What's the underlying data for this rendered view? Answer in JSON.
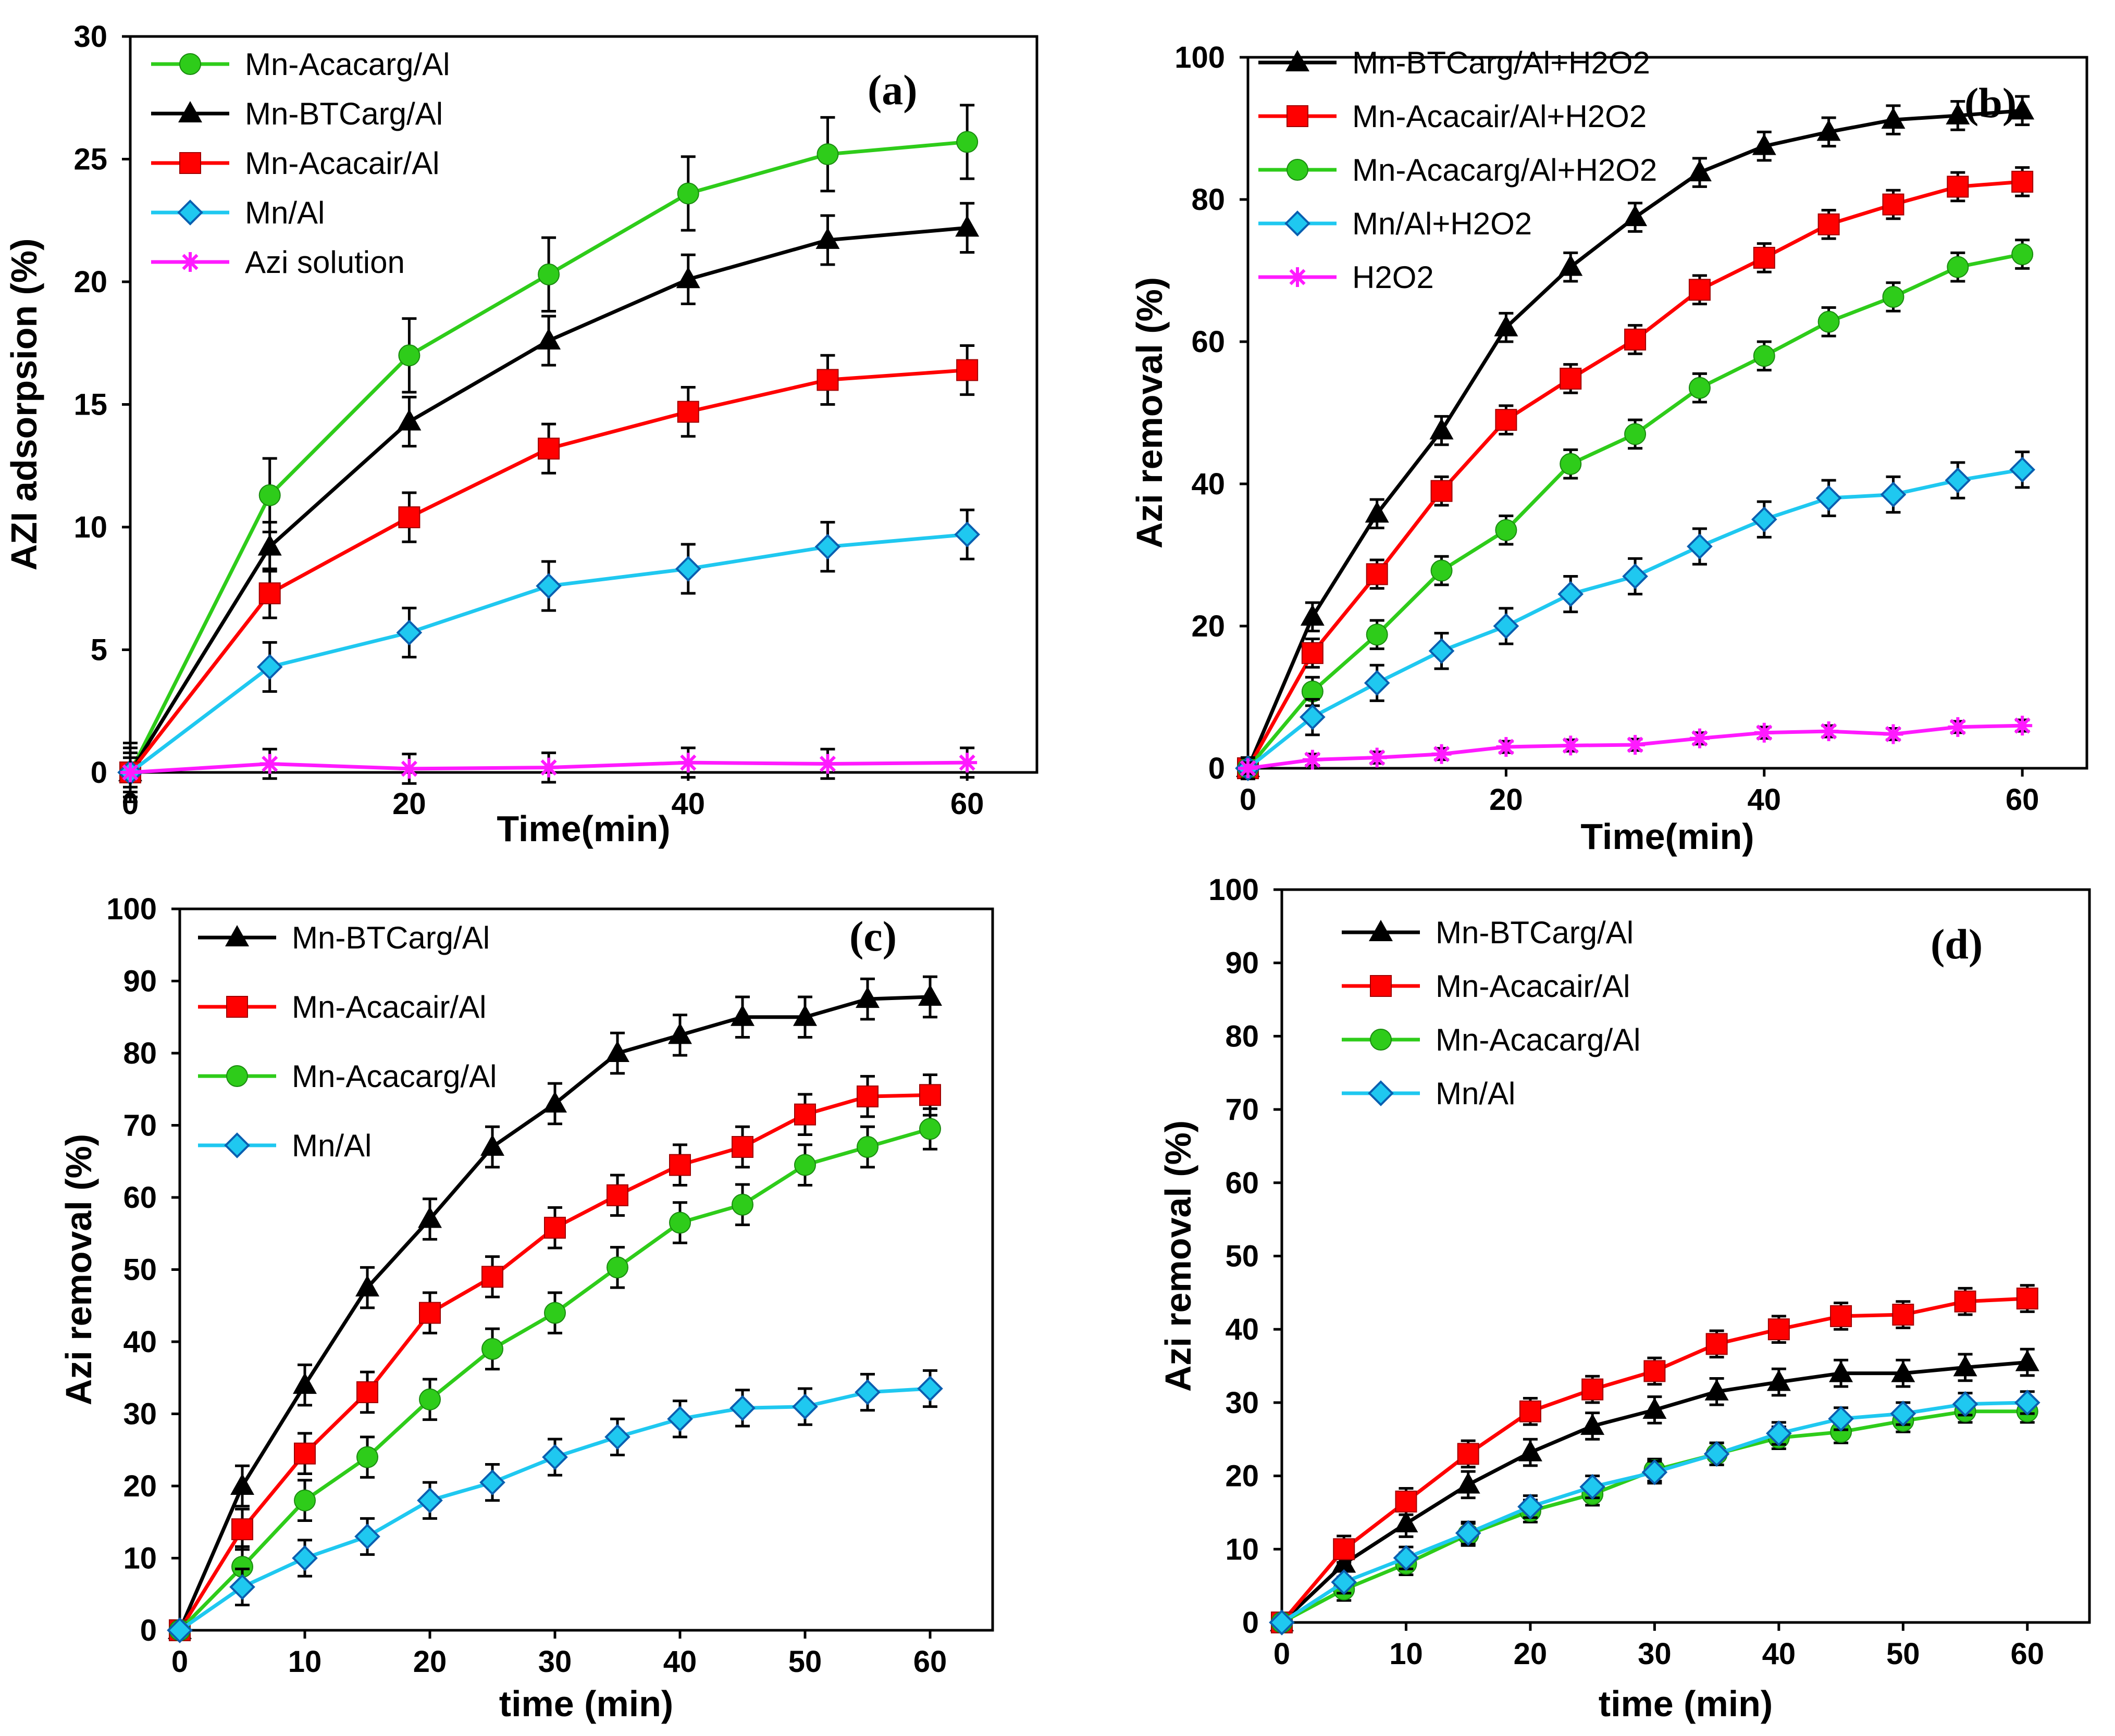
{
  "colors": {
    "green": "#2ecc1a",
    "black": "#000000",
    "red": "#ff0000",
    "cyan": "#1fc8f0",
    "magenta": "#ff1aff"
  },
  "chart_data": [
    {
      "type": "line",
      "panel": "(a)",
      "xlabel": "Time(min)",
      "ylabel": "AZI adsorpsion (%)",
      "xlim": [
        0,
        65
      ],
      "ylim": [
        0,
        30
      ],
      "xticks": [
        0,
        20,
        40,
        60
      ],
      "yticks": [
        0,
        5,
        10,
        15,
        20,
        25,
        30
      ],
      "legend_position": "top-left",
      "series": [
        {
          "name": "Mn-Acacarg/Al",
          "color": "#2ecc1a",
          "marker": "circle",
          "x": [
            0,
            10,
            20,
            30,
            40,
            50,
            60
          ],
          "values": [
            0,
            11.3,
            17.0,
            20.3,
            23.6,
            25.2,
            25.7
          ],
          "err": [
            1.2,
            1.5,
            1.5,
            1.5,
            1.5,
            1.5,
            1.5
          ]
        },
        {
          "name": "Mn-BTCarg/Al",
          "color": "#000000",
          "marker": "triangle",
          "x": [
            0,
            10,
            20,
            30,
            40,
            50,
            60
          ],
          "values": [
            0,
            9.2,
            14.3,
            17.6,
            20.1,
            21.7,
            22.2
          ],
          "err": [
            1.2,
            1.0,
            1.0,
            1.0,
            1.0,
            1.0,
            1.0
          ]
        },
        {
          "name": "Mn-Acacair/Al",
          "color": "#ff0000",
          "marker": "square",
          "x": [
            0,
            10,
            20,
            30,
            40,
            50,
            60
          ],
          "values": [
            0,
            7.3,
            10.4,
            13.2,
            14.7,
            16.0,
            16.4
          ],
          "err": [
            1.0,
            1.0,
            1.0,
            1.0,
            1.0,
            1.0,
            1.0
          ]
        },
        {
          "name": "Mn/Al",
          "color": "#1fc8f0",
          "marker": "diamond",
          "x": [
            0,
            10,
            20,
            30,
            40,
            50,
            60
          ],
          "values": [
            0,
            4.3,
            5.7,
            7.6,
            8.3,
            9.2,
            9.7
          ],
          "err": [
            0.8,
            1.0,
            1.0,
            1.0,
            1.0,
            1.0,
            1.0
          ]
        },
        {
          "name": "Azi solution",
          "color": "#ff1aff",
          "marker": "star",
          "x": [
            0,
            10,
            20,
            30,
            40,
            50,
            60
          ],
          "values": [
            0,
            0.35,
            0.15,
            0.2,
            0.4,
            0.35,
            0.4
          ],
          "err": [
            0.6,
            0.6,
            0.6,
            0.6,
            0.6,
            0.6,
            0.6
          ]
        }
      ]
    },
    {
      "type": "line",
      "panel": "(b)",
      "xlabel": "Time(min)",
      "ylabel": "Azi removal (%)",
      "xlim": [
        0,
        65
      ],
      "ylim": [
        0,
        100
      ],
      "xticks": [
        0,
        20,
        40,
        60
      ],
      "yticks": [
        0,
        20,
        40,
        60,
        80,
        100
      ],
      "legend_position": "top-left",
      "series": [
        {
          "name": "Mn-BTCarg/Al+H2O2",
          "color": "#000000",
          "marker": "triangle",
          "x": [
            0,
            5,
            10,
            15,
            20,
            25,
            30,
            35,
            40,
            45,
            50,
            55,
            60
          ],
          "values": [
            0,
            21.3,
            35.8,
            47.5,
            62.0,
            70.5,
            77.5,
            83.8,
            87.5,
            89.5,
            91.2,
            91.8,
            92.5
          ],
          "err": [
            1.5,
            2,
            2,
            2,
            2,
            2,
            2,
            2,
            2,
            2,
            2,
            2,
            2
          ]
        },
        {
          "name": "Mn-Acacair/Al+H2O2",
          "color": "#ff0000",
          "marker": "square",
          "x": [
            0,
            5,
            10,
            15,
            20,
            25,
            30,
            35,
            40,
            45,
            50,
            55,
            60
          ],
          "values": [
            0,
            16.2,
            27.3,
            39.0,
            49.0,
            54.8,
            60.3,
            67.3,
            71.8,
            76.5,
            79.3,
            81.8,
            82.5
          ],
          "err": [
            1.5,
            2,
            2,
            2,
            2,
            2,
            2,
            2,
            2,
            2,
            2,
            2,
            2
          ]
        },
        {
          "name": "Mn-Acacarg/Al+H2O2",
          "color": "#2ecc1a",
          "marker": "circle",
          "x": [
            0,
            5,
            10,
            15,
            20,
            25,
            30,
            35,
            40,
            45,
            50,
            55,
            60
          ],
          "values": [
            0,
            10.8,
            18.8,
            27.8,
            33.5,
            42.8,
            47.0,
            53.5,
            58.0,
            62.8,
            66.3,
            70.5,
            72.3
          ],
          "err": [
            1.5,
            2,
            2,
            2,
            2,
            2,
            2,
            2,
            2,
            2,
            2,
            2,
            2
          ]
        },
        {
          "name": "Mn/Al+H2O2",
          "color": "#1fc8f0",
          "marker": "diamond",
          "x": [
            0,
            5,
            10,
            15,
            20,
            25,
            30,
            35,
            40,
            45,
            50,
            55,
            60
          ],
          "values": [
            0,
            7.2,
            12.0,
            16.5,
            20.0,
            24.5,
            27.0,
            31.2,
            35.0,
            38.0,
            38.5,
            40.5,
            42.0
          ],
          "err": [
            1.5,
            2.5,
            2.5,
            2.5,
            2.5,
            2.5,
            2.5,
            2.5,
            2.5,
            2.5,
            2.5,
            2.5,
            2.5
          ]
        },
        {
          "name": "H2O2",
          "color": "#ff1aff",
          "marker": "star",
          "x": [
            0,
            5,
            10,
            15,
            20,
            25,
            30,
            35,
            40,
            45,
            50,
            55,
            60
          ],
          "values": [
            0,
            1.2,
            1.5,
            2.0,
            3.0,
            3.2,
            3.3,
            4.2,
            5.0,
            5.2,
            4.8,
            5.8,
            6.0
          ],
          "err": [
            0.8,
            0.8,
            0.8,
            0.8,
            0.8,
            0.8,
            0.8,
            0.8,
            0.8,
            0.8,
            0.8,
            0.8,
            0.8
          ]
        }
      ]
    },
    {
      "type": "line",
      "panel": "(c)",
      "xlabel": "time (min)",
      "ylabel": "Azi removal (%)",
      "xlim": [
        0,
        65
      ],
      "ylim": [
        0,
        100
      ],
      "xticks": [
        0,
        10,
        20,
        30,
        40,
        50,
        60
      ],
      "yticks": [
        0,
        10,
        20,
        30,
        40,
        50,
        60,
        70,
        80,
        90,
        100
      ],
      "legend_position": "top-left",
      "series": [
        {
          "name": "Mn-BTCarg/Al",
          "color": "#000000",
          "marker": "triangle",
          "x": [
            0,
            5,
            10,
            15,
            20,
            25,
            30,
            35,
            40,
            45,
            50,
            55,
            60
          ],
          "values": [
            0,
            20.0,
            34.0,
            47.5,
            57.0,
            67.0,
            73.0,
            80.0,
            82.5,
            85.0,
            85.0,
            87.5,
            87.8
          ],
          "err": [
            0,
            2.8,
            2.8,
            2.8,
            2.8,
            2.8,
            2.8,
            2.8,
            2.8,
            2.8,
            2.8,
            2.8,
            2.8
          ]
        },
        {
          "name": "Mn-Acacair/Al",
          "color": "#ff0000",
          "marker": "square",
          "x": [
            0,
            5,
            10,
            15,
            20,
            25,
            30,
            35,
            40,
            45,
            50,
            55,
            60
          ],
          "values": [
            0,
            14.0,
            24.5,
            33.0,
            44.0,
            49.0,
            55.8,
            60.3,
            64.5,
            67.0,
            71.5,
            74.0,
            74.2
          ],
          "err": [
            0,
            2.8,
            2.8,
            2.8,
            2.8,
            2.8,
            2.8,
            2.8,
            2.8,
            2.8,
            2.8,
            2.8,
            2.8
          ]
        },
        {
          "name": "Mn-Acacarg/Al",
          "color": "#2ecc1a",
          "marker": "circle",
          "x": [
            0,
            5,
            10,
            15,
            20,
            25,
            30,
            35,
            40,
            45,
            50,
            55,
            60
          ],
          "values": [
            0,
            8.8,
            18.0,
            24.0,
            32.0,
            39.0,
            44.0,
            50.3,
            56.5,
            59.0,
            64.5,
            67.0,
            69.5
          ],
          "err": [
            0,
            2.8,
            2.8,
            2.8,
            2.8,
            2.8,
            2.8,
            2.8,
            2.8,
            2.8,
            2.8,
            2.8,
            2.8
          ]
        },
        {
          "name": "Mn/Al",
          "color": "#1fc8f0",
          "marker": "diamond",
          "x": [
            0,
            5,
            10,
            15,
            20,
            25,
            30,
            35,
            40,
            45,
            50,
            55,
            60
          ],
          "values": [
            0,
            6.0,
            10.0,
            13.0,
            18.0,
            20.5,
            24.0,
            26.8,
            29.3,
            30.8,
            31.0,
            33.0,
            33.5
          ],
          "err": [
            0,
            2.5,
            2.5,
            2.5,
            2.5,
            2.5,
            2.5,
            2.5,
            2.5,
            2.5,
            2.5,
            2.5,
            2.5
          ]
        }
      ]
    },
    {
      "type": "line",
      "panel": "(d)",
      "xlabel": "time (min)",
      "ylabel": "Azi removal (%)",
      "xlim": [
        0,
        65
      ],
      "ylim": [
        0,
        100
      ],
      "xticks": [
        0,
        10,
        20,
        30,
        40,
        50,
        60
      ],
      "yticks": [
        0,
        10,
        20,
        30,
        40,
        50,
        60,
        70,
        80,
        90,
        100
      ],
      "legend_position": "top-left",
      "series": [
        {
          "name": "Mn-BTCarg/Al",
          "color": "#000000",
          "marker": "triangle",
          "x": [
            0,
            5,
            10,
            15,
            20,
            25,
            30,
            35,
            40,
            45,
            50,
            55,
            60
          ],
          "values": [
            0,
            8.0,
            13.5,
            18.8,
            23.2,
            26.8,
            29.0,
            31.5,
            32.8,
            34.0,
            34.0,
            34.8,
            35.5
          ],
          "err": [
            0,
            1.8,
            1.8,
            1.8,
            1.8,
            1.8,
            1.8,
            1.8,
            1.8,
            1.8,
            1.8,
            1.8,
            1.8
          ]
        },
        {
          "name": "Mn-Acacair/Al",
          "color": "#ff0000",
          "marker": "square",
          "x": [
            0,
            5,
            10,
            15,
            20,
            25,
            30,
            35,
            40,
            45,
            50,
            55,
            60
          ],
          "values": [
            0,
            10.0,
            16.5,
            23.0,
            28.8,
            31.8,
            34.3,
            38.0,
            40.0,
            41.8,
            42.0,
            43.8,
            44.2
          ],
          "err": [
            0,
            1.8,
            1.8,
            1.8,
            1.8,
            1.8,
            1.8,
            1.8,
            1.8,
            1.8,
            1.8,
            1.8,
            1.8
          ]
        },
        {
          "name": "Mn-Acacarg/Al",
          "color": "#2ecc1a",
          "marker": "circle",
          "x": [
            0,
            5,
            10,
            15,
            20,
            25,
            30,
            35,
            40,
            45,
            50,
            55,
            60
          ],
          "values": [
            0,
            4.5,
            8.0,
            12.0,
            15.2,
            17.5,
            20.8,
            23.0,
            25.2,
            26.0,
            27.5,
            28.8,
            28.8
          ],
          "err": [
            0,
            1.5,
            1.5,
            1.5,
            1.5,
            1.5,
            1.5,
            1.5,
            1.5,
            1.5,
            1.5,
            1.5,
            1.5
          ]
        },
        {
          "name": "Mn/Al",
          "color": "#1fc8f0",
          "marker": "diamond",
          "x": [
            0,
            5,
            10,
            15,
            20,
            25,
            30,
            35,
            40,
            45,
            50,
            55,
            60
          ],
          "values": [
            0,
            5.5,
            8.8,
            12.2,
            15.8,
            18.5,
            20.5,
            23.0,
            25.8,
            27.8,
            28.5,
            29.8,
            30.0
          ],
          "err": [
            0,
            1.5,
            1.5,
            1.5,
            1.5,
            1.5,
            1.5,
            1.5,
            1.5,
            1.5,
            1.5,
            1.5,
            1.5
          ]
        }
      ]
    }
  ]
}
